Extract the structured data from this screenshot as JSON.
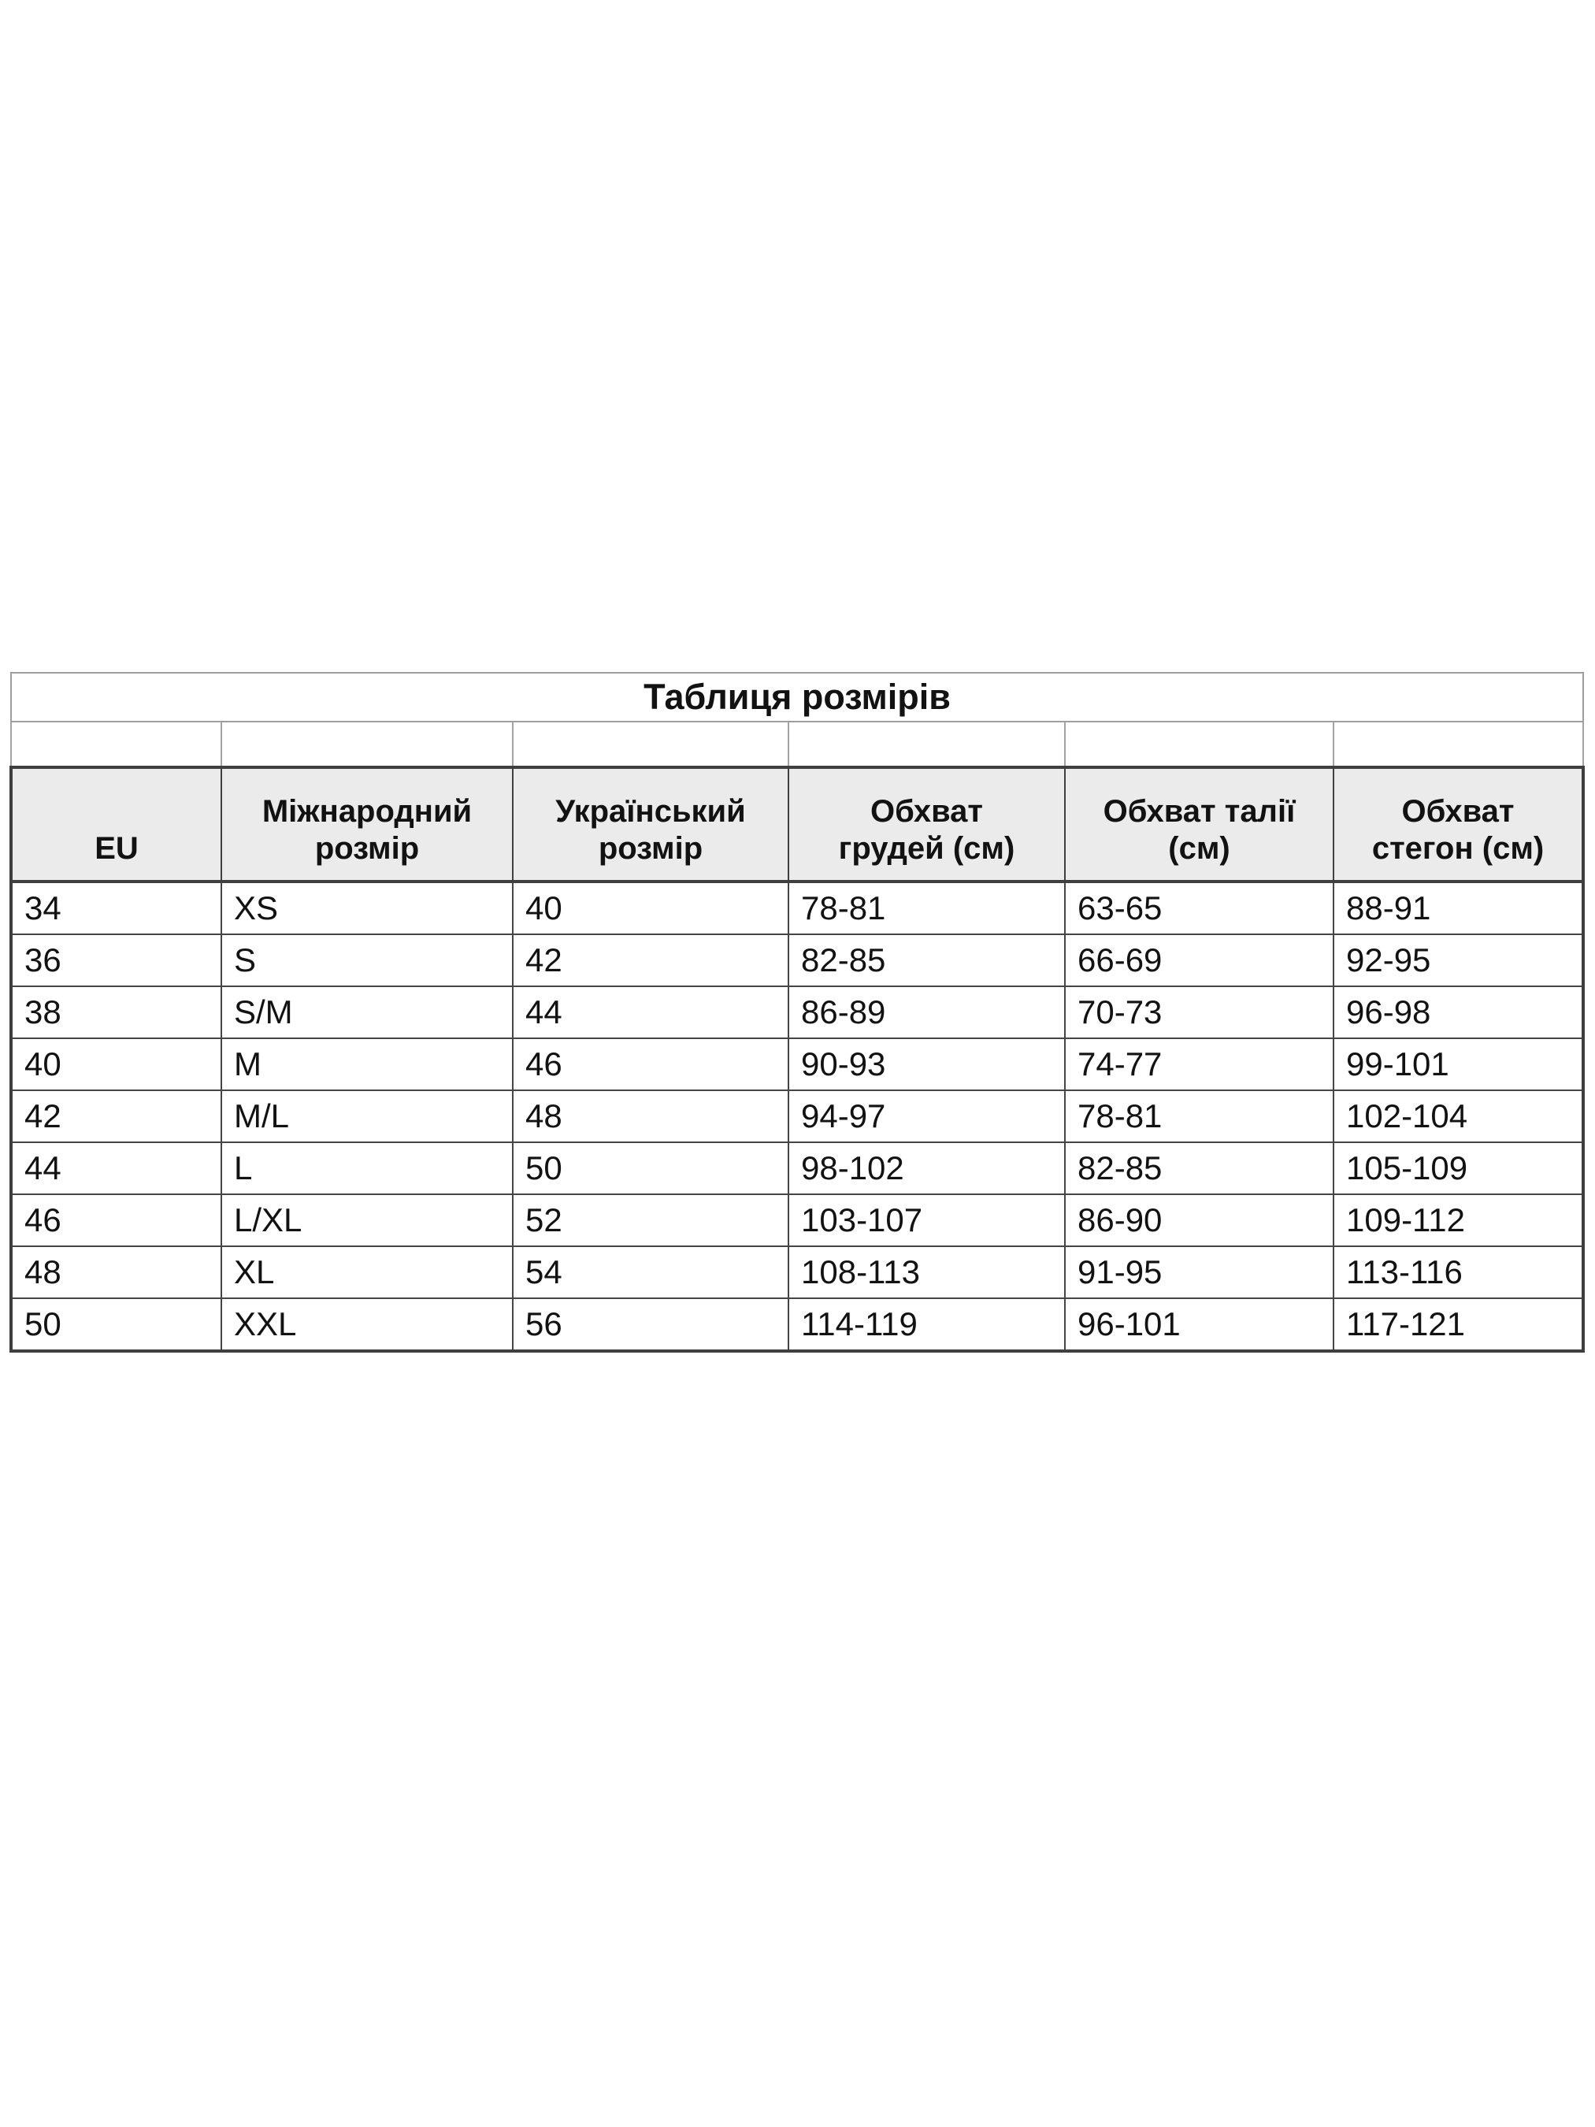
{
  "size_chart": {
    "title": "Таблиця розмірів",
    "columns": [
      {
        "label": "EU",
        "lines": [
          "EU"
        ]
      },
      {
        "label": "Міжнародний розмір",
        "lines": [
          "Міжнародний",
          "розмір"
        ]
      },
      {
        "label": "Український розмір",
        "lines": [
          "Український",
          "розмір"
        ]
      },
      {
        "label": "Обхват грудей (см)",
        "lines": [
          "Обхват",
          "грудей (см)"
        ]
      },
      {
        "label": "Обхват талії (см)",
        "lines": [
          "Обхват талії",
          "(см)"
        ]
      },
      {
        "label": "Обхват стегон (см)",
        "lines": [
          "Обхват",
          "стегон (см)"
        ]
      }
    ],
    "rows": [
      [
        "34",
        "XS",
        "40",
        "78-81",
        "63-65",
        "88-91"
      ],
      [
        "36",
        "S",
        "42",
        "82-85",
        "66-69",
        "92-95"
      ],
      [
        "38",
        "S/M",
        "44",
        "86-89",
        "70-73",
        "96-98"
      ],
      [
        "40",
        "M",
        "46",
        "90-93",
        "74-77",
        "99-101"
      ],
      [
        "42",
        "M/L",
        "48",
        "94-97",
        "78-81",
        "102-104"
      ],
      [
        "44",
        "L",
        "50",
        "98-102",
        "82-85",
        "105-109"
      ],
      [
        "46",
        "L/XL",
        "52",
        "103-107",
        "86-90",
        "109-112"
      ],
      [
        "48",
        "XL",
        "54",
        "108-113",
        "91-95",
        "113-116"
      ],
      [
        "50",
        "XXL",
        "56",
        "114-119",
        "96-101",
        "117-121"
      ]
    ],
    "colors": {
      "page_background": "#ffffff",
      "header_background": "#ebebeb",
      "border_dark": "#3f3f3f",
      "border_light": "#9e9e9e",
      "text": "#121212"
    }
  }
}
